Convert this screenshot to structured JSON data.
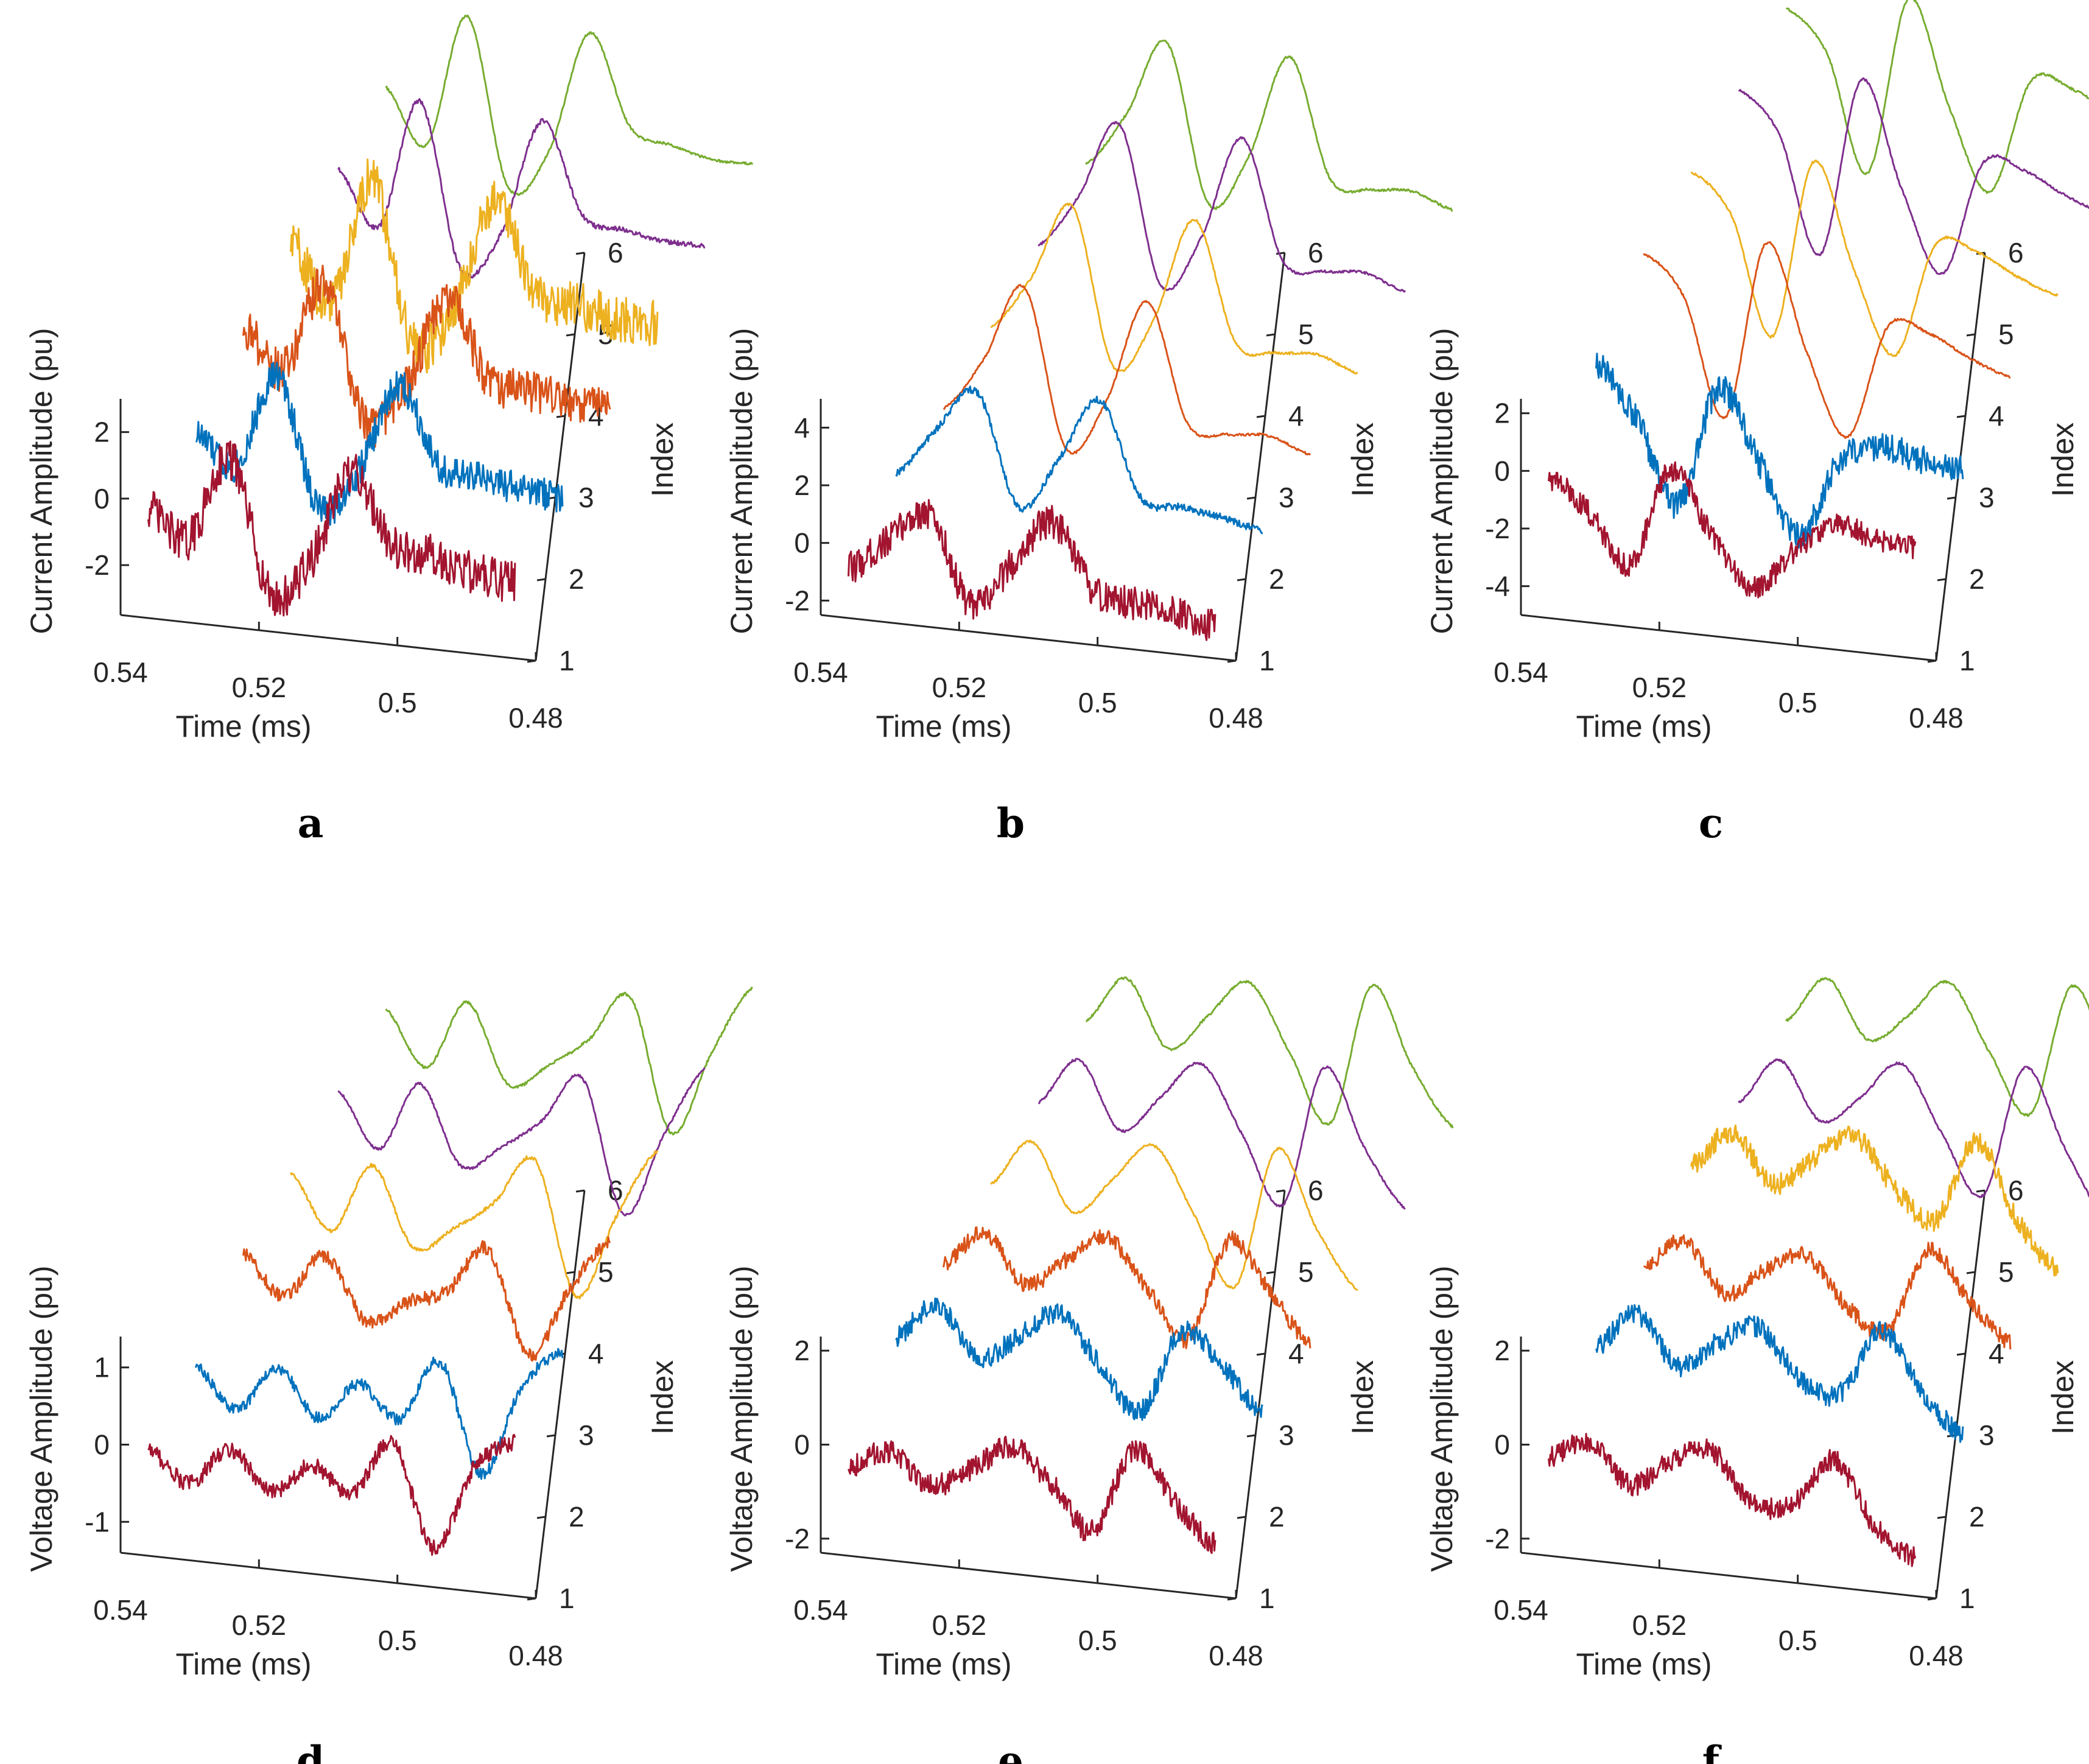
{
  "colors": {
    "1": "#a2142f",
    "2": "#0072bd",
    "3": "#d95319",
    "4": "#edb120",
    "5": "#7e2f8e",
    "6": "#77ac30"
  },
  "chart_data": [
    {
      "panel": "a",
      "type": "line-3d-waterfall",
      "xlabel": "Time (ms)",
      "ylabel": "Current Amplitude (pu)",
      "zlabel": "Index",
      "x_range": [
        0.48,
        0.54
      ],
      "x_ticks": [
        "0.54",
        "0.52",
        "0.5",
        "0.48"
      ],
      "y_range": [
        -3.5,
        3
      ],
      "y_ticks": [
        "2",
        "0",
        "-2"
      ],
      "z_range": [
        1,
        6
      ],
      "z_ticks": [
        "1",
        "2",
        "3",
        "4",
        "5",
        "6"
      ],
      "series": [
        {
          "index": 1,
          "values": [
            -0.2,
            -1.0,
            1.6,
            -2.4,
            -1.2,
            1.5,
            -0.5,
            -0.7,
            -1.1,
            -1.2
          ],
          "noise": 0.9
        },
        {
          "index": 2,
          "values": [
            -0.4,
            -1.2,
            1.6,
            -2.2,
            -1.0,
            1.7,
            -0.6,
            -0.8,
            -1.0,
            -1.1
          ],
          "noise": 0.7
        },
        {
          "index": 3,
          "values": [
            0.4,
            -0.8,
            1.9,
            -2.1,
            -0.9,
            1.9,
            -0.4,
            -0.6,
            -0.8,
            -0.9
          ],
          "noise": 0.9
        },
        {
          "index": 4,
          "values": [
            0.5,
            -1.2,
            2.6,
            -2.2,
            -1.0,
            2.4,
            -0.2,
            -0.5,
            -0.8,
            -0.8
          ],
          "noise": 1.0
        },
        {
          "index": 5,
          "values": [
            0.2,
            -1.4,
            2.5,
            -2.4,
            -1.2,
            2.3,
            -0.4,
            -0.7,
            -0.9,
            -0.9
          ],
          "noise": 0.1
        },
        {
          "index": 6,
          "values": [
            0.2,
            -1.4,
            2.6,
            -2.4,
            -1.2,
            2.5,
            -0.2,
            -0.6,
            -0.9,
            -0.9
          ],
          "noise": 0.05
        }
      ]
    },
    {
      "panel": "b",
      "type": "line-3d-waterfall",
      "xlabel": "Time (ms)",
      "ylabel": "Current Amplitude (pu)",
      "zlabel": "Index",
      "x_range": [
        0.48,
        0.54
      ],
      "x_ticks": [
        "0.54",
        "0.52",
        "0.5",
        "0.48"
      ],
      "y_range": [
        -2.5,
        5
      ],
      "y_ticks": [
        "4",
        "2",
        "0",
        "-2"
      ],
      "z_range": [
        1,
        6
      ],
      "z_ticks": [
        "1",
        "2",
        "3",
        "4",
        "5",
        "6"
      ],
      "series": [
        {
          "index": 1,
          "values": [
            -0.8,
            0.4,
            1.4,
            -1.6,
            0.0,
            1.6,
            -0.6,
            -0.9,
            -1.0,
            -1.4
          ],
          "noise": 0.7
        },
        {
          "index": 2,
          "values": [
            -0.3,
            1.4,
            2.8,
            -1.0,
            0.8,
            3.0,
            -0.2,
            -0.4,
            -0.6,
            -0.9
          ],
          "noise": 0.15
        },
        {
          "index": 3,
          "values": [
            -0.9,
            1.0,
            3.6,
            -1.8,
            0.0,
            3.6,
            -0.5,
            -0.7,
            -0.6,
            -1.1
          ],
          "noise": 0.05
        },
        {
          "index": 4,
          "values": [
            -0.9,
            1.0,
            3.6,
            -1.8,
            0.0,
            3.6,
            -0.5,
            -0.7,
            -0.6,
            -1.1
          ],
          "noise": 0.05
        },
        {
          "index": 5,
          "values": [
            -0.9,
            1.0,
            3.6,
            -1.8,
            0.0,
            3.6,
            -0.5,
            -0.7,
            -0.6,
            -1.1
          ],
          "noise": 0.05
        },
        {
          "index": 6,
          "values": [
            -0.9,
            1.0,
            3.6,
            -1.8,
            0.0,
            3.6,
            -0.5,
            -0.7,
            -0.6,
            -1.1
          ],
          "noise": 0.05
        }
      ]
    },
    {
      "panel": "c",
      "type": "line-3d-waterfall",
      "xlabel": "Time (ms)",
      "ylabel": "Current Amplitude (pu)",
      "zlabel": "Index",
      "x_range": [
        0.48,
        0.54
      ],
      "x_ticks": [
        "0.54",
        "0.52",
        "0.5",
        "0.48"
      ],
      "y_range": [
        -5,
        2.5
      ],
      "y_ticks": [
        "2",
        "0",
        "-2",
        "-4"
      ],
      "z_range": [
        1,
        6
      ],
      "z_ticks": [
        "1",
        "2",
        "3",
        "4",
        "5",
        "6"
      ],
      "series": [
        {
          "index": 1,
          "values": [
            -0.1,
            -1.2,
            -2.8,
            0.6,
            -1.5,
            -3.2,
            -1.8,
            -0.7,
            -1.0,
            -1.2
          ],
          "noise": 0.5
        },
        {
          "index": 2,
          "values": [
            1.0,
            -0.8,
            -3.6,
            0.6,
            -1.8,
            -4.2,
            -1.4,
            -0.8,
            -1.1,
            -1.2
          ],
          "noise": 0.6
        },
        {
          "index": 3,
          "values": [
            2.0,
            0.6,
            -3.4,
            2.8,
            -0.8,
            -3.6,
            0.4,
            0.3,
            -0.4,
            -0.9
          ],
          "noise": 0.05
        },
        {
          "index": 4,
          "values": [
            2.0,
            0.6,
            -3.4,
            2.8,
            -0.8,
            -3.6,
            0.4,
            0.3,
            -0.4,
            -0.9
          ],
          "noise": 0.05
        },
        {
          "index": 5,
          "values": [
            2.0,
            0.6,
            -3.4,
            2.8,
            -0.8,
            -3.6,
            0.4,
            0.3,
            -0.4,
            -0.9
          ],
          "noise": 0.05
        },
        {
          "index": 6,
          "values": [
            2.0,
            0.6,
            -3.4,
            2.8,
            -0.8,
            -3.6,
            0.4,
            0.3,
            -0.4,
            -0.9
          ],
          "noise": 0.05
        }
      ]
    },
    {
      "panel": "d",
      "type": "line-3d-waterfall",
      "xlabel": "Time (ms)",
      "ylabel": "Voltage Amplitude (pu)",
      "zlabel": "Index",
      "x_range": [
        0.48,
        0.54
      ],
      "x_ticks": [
        "0.54",
        "0.52",
        "0.5",
        "0.48"
      ],
      "y_range": [
        -1.4,
        1.4
      ],
      "y_ticks": [
        "1",
        "0",
        "-1"
      ],
      "z_range": [
        1,
        6
      ],
      "z_ticks": [
        "1",
        "2",
        "3",
        "4",
        "5",
        "6"
      ],
      "series": [
        {
          "index": 1,
          "values": [
            0.0,
            -0.4,
            0.1,
            -0.4,
            0.0,
            -0.3,
            0.4,
            -0.9,
            0.2,
            0.6
          ],
          "noise": 0.35
        },
        {
          "index": 2,
          "values": [
            0.0,
            -0.5,
            0.1,
            -0.5,
            0.0,
            -0.4,
            0.4,
            -1.0,
            0.2,
            0.7
          ],
          "noise": 0.25
        },
        {
          "index": 3,
          "values": [
            0.4,
            -0.1,
            0.5,
            -0.3,
            0.0,
            0.2,
            0.8,
            -0.5,
            0.4,
            1.1
          ],
          "noise": 0.3
        },
        {
          "index": 4,
          "values": [
            0.4,
            -0.3,
            0.6,
            -0.4,
            -0.1,
            0.3,
            0.9,
            -0.8,
            0.3,
            1.2
          ],
          "noise": 0.08
        },
        {
          "index": 5,
          "values": [
            0.4,
            -0.3,
            0.6,
            -0.4,
            -0.1,
            0.3,
            0.9,
            -0.8,
            0.3,
            1.2
          ],
          "noise": 0.06
        },
        {
          "index": 6,
          "values": [
            0.4,
            -0.3,
            0.6,
            -0.4,
            -0.1,
            0.3,
            0.9,
            -0.8,
            0.3,
            1.2
          ],
          "noise": 0.06
        }
      ]
    },
    {
      "panel": "e",
      "type": "line-3d-waterfall",
      "xlabel": "Time (ms)",
      "ylabel": "Voltage Amplitude (pu)",
      "zlabel": "Index",
      "x_range": [
        0.48,
        0.54
      ],
      "x_ticks": [
        "0.54",
        "0.52",
        "0.5",
        "0.48"
      ],
      "y_range": [
        -2.3,
        2.3
      ],
      "y_ticks": [
        "2",
        "0",
        "-2"
      ],
      "z_range": [
        1,
        6
      ],
      "z_ticks": [
        "1",
        "2",
        "3",
        "4",
        "5",
        "6"
      ],
      "series": [
        {
          "index": 1,
          "values": [
            -0.4,
            0.0,
            -0.6,
            -0.2,
            0.4,
            -0.3,
            -1.2,
            0.6,
            -0.4,
            -1.2
          ],
          "noise": 0.5
        },
        {
          "index": 2,
          "values": [
            0.6,
            1.4,
            0.4,
            0.9,
            1.5,
            0.5,
            -0.4,
            1.4,
            0.8,
            -0.2
          ],
          "noise": 0.45
        },
        {
          "index": 3,
          "values": [
            0.4,
            1.2,
            0.2,
            0.8,
            1.4,
            0.4,
            -0.6,
            1.6,
            0.6,
            -0.4
          ],
          "noise": 0.35
        },
        {
          "index": 4,
          "values": [
            0.4,
            1.4,
            0.0,
            0.8,
            1.6,
            0.2,
            -1.2,
            1.8,
            0.2,
            -1.0
          ],
          "noise": 0.05
        },
        {
          "index": 5,
          "values": [
            0.4,
            1.4,
            0.0,
            0.8,
            1.6,
            0.2,
            -1.2,
            1.8,
            0.2,
            -1.0
          ],
          "noise": 0.05
        },
        {
          "index": 6,
          "values": [
            0.4,
            1.4,
            0.0,
            0.8,
            1.6,
            0.2,
            -1.2,
            1.8,
            0.2,
            -1.0
          ],
          "noise": 0.05
        }
      ]
    },
    {
      "panel": "f",
      "type": "line-3d-waterfall",
      "xlabel": "Time (ms)",
      "ylabel": "Voltage Amplitude (pu)",
      "zlabel": "Index",
      "x_range": [
        0.48,
        0.54
      ],
      "x_ticks": [
        "0.54",
        "0.52",
        "0.5",
        "0.48"
      ],
      "y_range": [
        -2.3,
        2.3
      ],
      "y_ticks": [
        "2",
        "0",
        "-2"
      ],
      "z_range": [
        1,
        6
      ],
      "z_ticks": [
        "1",
        "2",
        "3",
        "4",
        "5",
        "6"
      ],
      "series": [
        {
          "index": 1,
          "values": [
            -0.2,
            0.2,
            -0.6,
            0.0,
            0.3,
            -0.7,
            -0.6,
            0.4,
            -0.9,
            -1.5
          ],
          "noise": 0.45
        },
        {
          "index": 2,
          "values": [
            0.4,
            1.2,
            0.2,
            0.8,
            1.2,
            0.2,
            0.0,
            1.4,
            0.2,
            -0.6
          ],
          "noise": 0.45
        },
        {
          "index": 3,
          "values": [
            0.4,
            1.0,
            0.0,
            0.6,
            1.0,
            0.0,
            -0.4,
            1.4,
            0.4,
            -0.4
          ],
          "noise": 0.35
        },
        {
          "index": 4,
          "values": [
            0.8,
            1.6,
            0.6,
            1.2,
            1.8,
            0.8,
            0.2,
            2.0,
            0.4,
            -0.6
          ],
          "noise": 0.45
        },
        {
          "index": 5,
          "values": [
            0.4,
            1.4,
            0.2,
            0.8,
            1.6,
            0.2,
            -1.0,
            1.8,
            0.2,
            -1.2
          ],
          "noise": 0.05
        },
        {
          "index": 6,
          "values": [
            0.4,
            1.4,
            0.2,
            0.8,
            1.6,
            0.2,
            -1.0,
            1.8,
            0.2,
            -1.2
          ],
          "noise": 0.05
        }
      ]
    }
  ]
}
